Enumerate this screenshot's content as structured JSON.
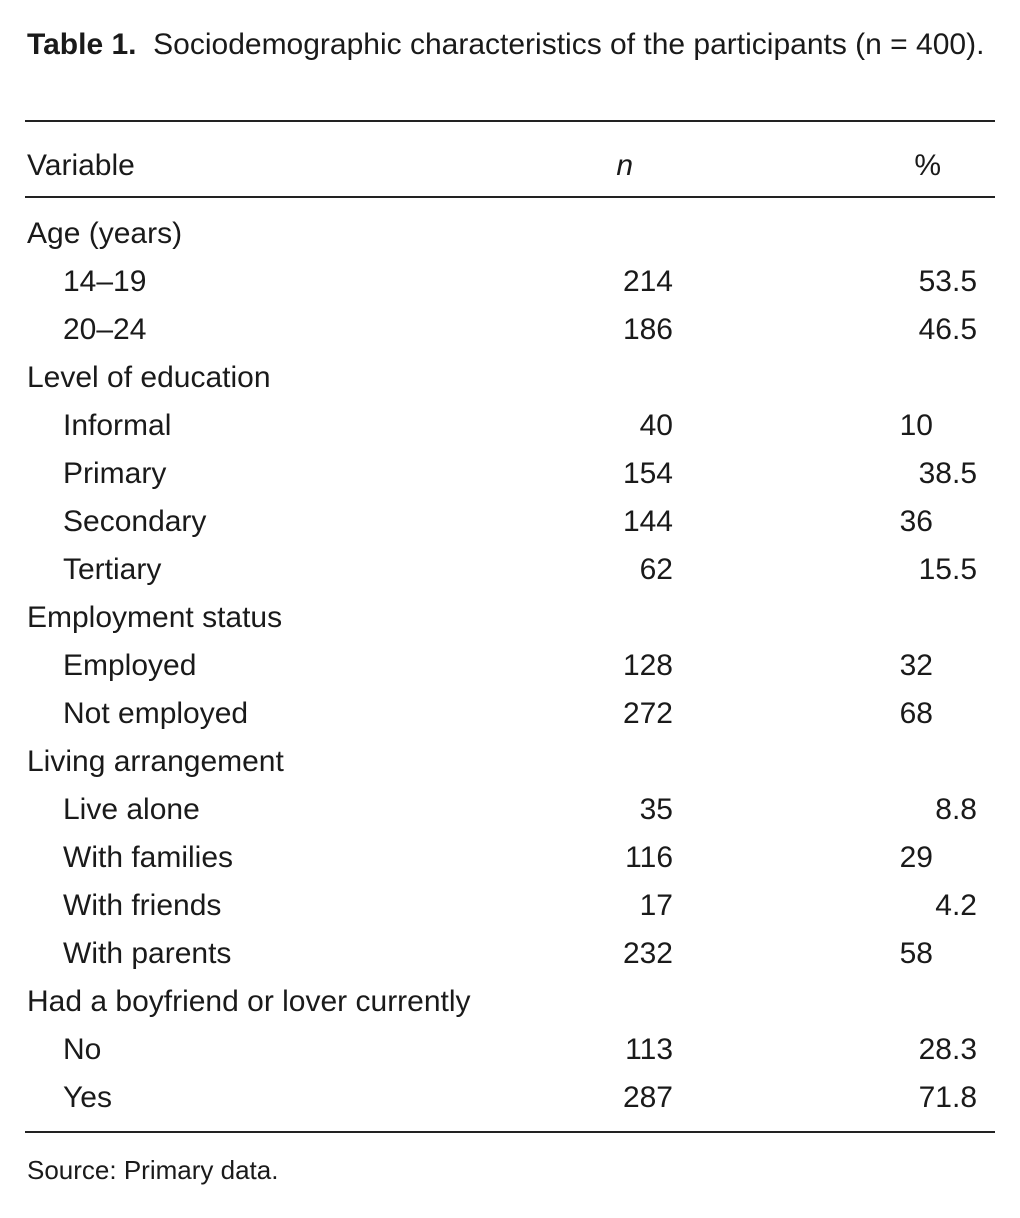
{
  "table": {
    "label": "Table 1.",
    "caption": "Sociodemographic characteristics of the participants (n = 400).",
    "headers": [
      "Variable",
      "n",
      "%"
    ],
    "sections": [
      {
        "name": "Age (years)",
        "rows": [
          [
            "14–19",
            "214",
            "53.5"
          ],
          [
            "20–24",
            "186",
            "46.5"
          ]
        ]
      },
      {
        "name": "Level of education",
        "rows": [
          [
            "Informal",
            "40",
            "10"
          ],
          [
            "Primary",
            "154",
            "38.5"
          ],
          [
            "Secondary",
            "144",
            "36"
          ],
          [
            "Tertiary",
            "62",
            "15.5"
          ]
        ]
      },
      {
        "name": "Employment status",
        "rows": [
          [
            "Employed",
            "128",
            "32"
          ],
          [
            "Not employed",
            "272",
            "68"
          ]
        ]
      },
      {
        "name": "Living arrangement",
        "rows": [
          [
            "Live alone",
            "35",
            "8.8"
          ],
          [
            "With families",
            "116",
            "29"
          ],
          [
            "With friends",
            "17",
            "4.2"
          ],
          [
            "With parents",
            "232",
            "58"
          ]
        ]
      },
      {
        "name": "Had a boyfriend or lover currently",
        "rows": [
          [
            "No",
            "113",
            "28.3"
          ],
          [
            "Yes",
            "287",
            "71.8"
          ]
        ]
      }
    ],
    "source": "Source: Primary data."
  }
}
